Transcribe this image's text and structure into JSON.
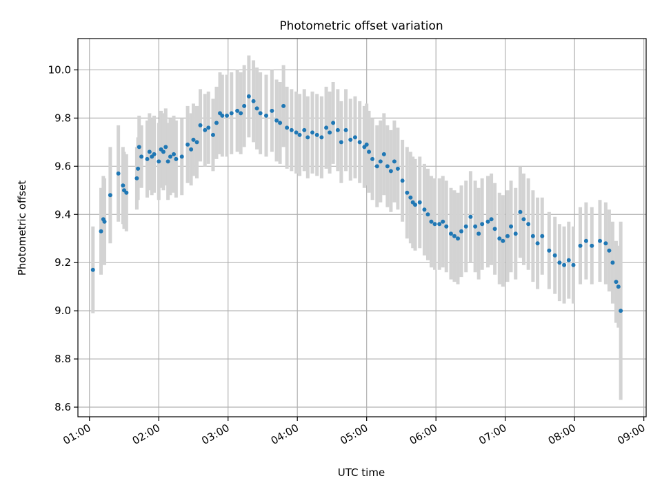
{
  "chart_data": {
    "type": "scatter",
    "title": "Photometric offset variation",
    "xlabel": "UTC time",
    "ylabel": "Photometric offset",
    "xlim": [
      "00:50",
      "09:02"
    ],
    "ylim": [
      8.56,
      10.13
    ],
    "x_ticks": [
      "01:00",
      "02:00",
      "03:00",
      "04:00",
      "05:00",
      "06:00",
      "07:00",
      "08:00",
      "09:00"
    ],
    "y_ticks": [
      8.6,
      8.8,
      9.0,
      9.2,
      9.4,
      9.6,
      9.8,
      10.0
    ],
    "grid": true,
    "error_bars": true,
    "colors": {
      "points": "#1f77b4",
      "error_bars": "#d3d3d3",
      "grid": "#b0b0b0"
    },
    "series": [
      {
        "x": [
          "01:03",
          "01:10",
          "01:12",
          "01:13",
          "01:18",
          "01:25",
          "01:29",
          "01:30",
          "01:32",
          "01:41",
          "01:42",
          "01:43",
          "01:45",
          "01:50",
          "01:52",
          "01:54",
          "01:56",
          "02:00",
          "02:02",
          "02:04",
          "02:06",
          "02:08",
          "02:10",
          "02:13",
          "02:15",
          "02:20",
          "02:25",
          "02:28",
          "02:30",
          "02:33",
          "02:36",
          "02:40",
          "02:43",
          "02:47",
          "02:50",
          "02:53",
          "02:55",
          "02:59",
          "03:03",
          "03:08",
          "03:11",
          "03:14",
          "03:18",
          "03:22",
          "03:25",
          "03:28",
          "03:33",
          "03:38",
          "03:42",
          "03:45",
          "03:48",
          "03:51",
          "03:55",
          "03:59",
          "04:02",
          "04:06",
          "04:09",
          "04:13",
          "04:17",
          "04:21",
          "04:25",
          "04:28",
          "04:31",
          "04:35",
          "04:38",
          "04:42",
          "04:46",
          "04:50",
          "04:54",
          "04:58",
          "05:00",
          "05:02",
          "05:05",
          "05:09",
          "05:12",
          "05:15",
          "05:18",
          "05:21",
          "05:24",
          "05:27",
          "05:31",
          "05:35",
          "05:38",
          "05:40",
          "05:42",
          "05:46",
          "05:50",
          "05:53",
          "05:56",
          "05:59",
          "06:03",
          "06:06",
          "06:09",
          "06:13",
          "06:16",
          "06:19",
          "06:22",
          "06:26",
          "06:30",
          "06:34",
          "06:37",
          "06:40",
          "06:45",
          "06:48",
          "06:51",
          "06:55",
          "06:58",
          "07:02",
          "07:05",
          "07:09",
          "07:13",
          "07:16",
          "07:20",
          "07:24",
          "07:28",
          "07:32",
          "07:38",
          "07:43",
          "07:47",
          "07:51",
          "07:55",
          "07:59",
          "08:05",
          "08:10",
          "08:15",
          "08:22",
          "08:27",
          "08:30",
          "08:33",
          "08:36",
          "08:38",
          "08:40"
        ],
        "y": [
          9.17,
          9.33,
          9.38,
          9.37,
          9.48,
          9.57,
          9.52,
          9.5,
          9.49,
          9.55,
          9.59,
          9.68,
          9.64,
          9.63,
          9.66,
          9.64,
          9.65,
          9.62,
          9.67,
          9.66,
          9.68,
          9.62,
          9.64,
          9.65,
          9.63,
          9.64,
          9.69,
          9.67,
          9.71,
          9.7,
          9.77,
          9.75,
          9.76,
          9.73,
          9.78,
          9.82,
          9.81,
          9.81,
          9.82,
          9.83,
          9.82,
          9.85,
          9.89,
          9.87,
          9.84,
          9.82,
          9.81,
          9.83,
          9.79,
          9.78,
          9.85,
          9.76,
          9.75,
          9.74,
          9.73,
          9.75,
          9.72,
          9.74,
          9.73,
          9.72,
          9.76,
          9.74,
          9.78,
          9.75,
          9.7,
          9.75,
          9.71,
          9.72,
          9.7,
          9.68,
          9.69,
          9.66,
          9.63,
          9.6,
          9.62,
          9.65,
          9.6,
          9.58,
          9.62,
          9.59,
          9.54,
          9.49,
          9.47,
          9.45,
          9.44,
          9.45,
          9.42,
          9.4,
          9.37,
          9.36,
          9.36,
          9.37,
          9.35,
          9.32,
          9.31,
          9.3,
          9.33,
          9.35,
          9.39,
          9.35,
          9.32,
          9.36,
          9.37,
          9.38,
          9.34,
          9.3,
          9.29,
          9.31,
          9.35,
          9.32,
          9.41,
          9.38,
          9.36,
          9.31,
          9.28,
          9.31,
          9.25,
          9.23,
          9.2,
          9.19,
          9.21,
          9.19,
          9.27,
          9.29,
          9.27,
          9.29,
          9.28,
          9.25,
          9.2,
          9.12,
          9.1,
          9.0
        ],
        "err": [
          0.18,
          0.18,
          0.18,
          0.18,
          0.2,
          0.2,
          0.16,
          0.16,
          0.16,
          0.13,
          0.13,
          0.13,
          0.13,
          0.16,
          0.16,
          0.16,
          0.16,
          0.16,
          0.16,
          0.16,
          0.16,
          0.16,
          0.16,
          0.16,
          0.16,
          0.16,
          0.16,
          0.15,
          0.15,
          0.15,
          0.15,
          0.15,
          0.15,
          0.15,
          0.15,
          0.17,
          0.17,
          0.17,
          0.17,
          0.17,
          0.17,
          0.17,
          0.17,
          0.17,
          0.17,
          0.17,
          0.17,
          0.17,
          0.17,
          0.17,
          0.17,
          0.17,
          0.17,
          0.17,
          0.17,
          0.17,
          0.17,
          0.17,
          0.17,
          0.17,
          0.17,
          0.17,
          0.17,
          0.17,
          0.17,
          0.17,
          0.17,
          0.17,
          0.17,
          0.17,
          0.17,
          0.17,
          0.17,
          0.17,
          0.17,
          0.17,
          0.17,
          0.17,
          0.17,
          0.17,
          0.17,
          0.19,
          0.19,
          0.19,
          0.19,
          0.19,
          0.19,
          0.19,
          0.19,
          0.19,
          0.19,
          0.19,
          0.19,
          0.19,
          0.19,
          0.19,
          0.19,
          0.19,
          0.19,
          0.19,
          0.19,
          0.19,
          0.19,
          0.19,
          0.19,
          0.19,
          0.19,
          0.19,
          0.19,
          0.19,
          0.19,
          0.19,
          0.19,
          0.19,
          0.19,
          0.16,
          0.16,
          0.16,
          0.16,
          0.16,
          0.16,
          0.16,
          0.16,
          0.16,
          0.16,
          0.17,
          0.17,
          0.17,
          0.17,
          0.17,
          0.17,
          0.37
        ]
      }
    ]
  }
}
